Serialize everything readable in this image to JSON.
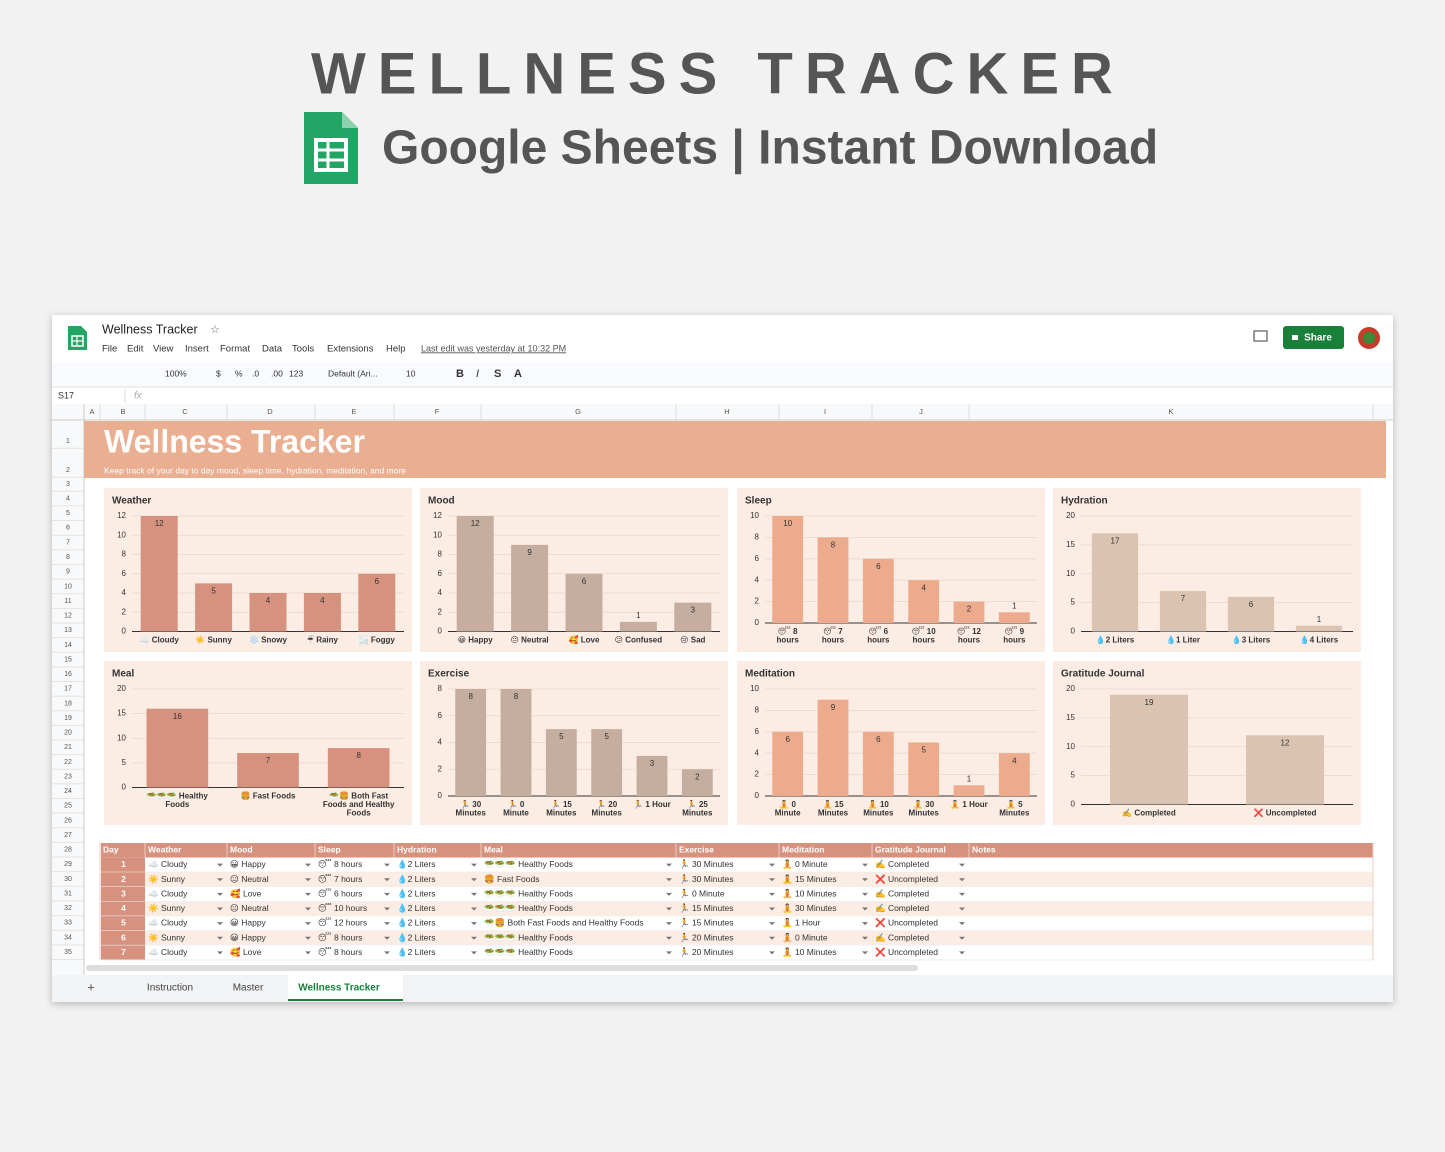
{
  "header": {
    "title": "WELLNESS TRACKER",
    "subtitle": "Google Sheets | Instant Download"
  },
  "app": {
    "doc_title": "Wellness Tracker",
    "menu": [
      "File",
      "Edit",
      "View",
      "Insert",
      "Format",
      "Data",
      "Tools",
      "Extensions",
      "Help"
    ],
    "last_edit": "Last edit was yesterday at 10:32 PM",
    "share": "Share",
    "toolbar": [
      "100%",
      "$",
      "%",
      ".0",
      ".00",
      "123",
      "Default (Ari...",
      "10",
      "B",
      "I",
      "S",
      "A"
    ],
    "name_box": "S17",
    "fx": "fx",
    "columns": [
      "A",
      "B",
      "C",
      "D",
      "E",
      "F",
      "G",
      "H",
      "I",
      "J",
      "K"
    ],
    "rows": [
      1,
      2,
      3,
      4,
      5,
      6,
      7,
      8,
      9,
      10,
      11,
      12,
      13,
      14,
      15,
      16,
      17,
      18,
      19,
      20,
      21,
      22,
      23,
      24,
      25,
      26,
      27,
      28,
      29,
      30,
      31,
      32,
      33,
      34,
      35
    ],
    "tabs": [
      "Instruction",
      "Master",
      "Wellness Tracker"
    ]
  },
  "sheet": {
    "title": "Wellness Tracker",
    "subtitle": "Keep track of your day to day mood, sleep time, hydration, meditation, and more"
  },
  "charts": [
    {
      "type": "bar",
      "title": "Weather",
      "categories": [
        "☁️ Cloudy",
        "☀️ Sunny",
        "❄️ Snowy",
        "☔ Rainy",
        "🌫️ Foggy"
      ],
      "values": [
        12,
        5,
        4,
        4,
        6
      ],
      "color": "#d6927f",
      "ylim": [
        0,
        12
      ],
      "yticks": [
        0,
        2,
        4,
        6,
        8,
        10,
        12
      ],
      "grid": true
    },
    {
      "type": "bar",
      "title": "Mood",
      "categories": [
        "😀 Happy",
        "😐 Neutral",
        "🥰 Love",
        "😕 Confused",
        "😢 Sad"
      ],
      "values": [
        12,
        9,
        6,
        1,
        3
      ],
      "color": "#c5ae9f",
      "ylim": [
        0,
        12
      ],
      "yticks": [
        0,
        2,
        4,
        6,
        8,
        10,
        12
      ],
      "grid": true
    },
    {
      "type": "bar",
      "title": "Sleep",
      "categories": [
        "😴 8 hours",
        "😴 7 hours",
        "😴 6 hours",
        "😴 10 hours",
        "😴 12 hours",
        "😴 9 hours"
      ],
      "values": [
        10,
        8,
        6,
        4,
        2,
        1
      ],
      "color": "#ebab8c",
      "ylim": [
        0,
        10
      ],
      "yticks": [
        0,
        2,
        4,
        6,
        8,
        10
      ],
      "grid": true
    },
    {
      "type": "bar",
      "title": "Hydration",
      "categories": [
        "💧2 Liters",
        "💧1 Liter",
        "💧3 Liters",
        "💧4 Liters"
      ],
      "values": [
        17,
        7,
        6,
        1
      ],
      "color": "#dac3b0",
      "ylim": [
        0,
        20
      ],
      "yticks": [
        0,
        5,
        10,
        15,
        20
      ],
      "grid": true
    },
    {
      "type": "bar",
      "title": "Meal",
      "categories": [
        "🥗🥗🥗 Healthy Foods",
        "🍔 Fast Foods",
        "🥗🍔 Both Fast Foods and Healthy Foods"
      ],
      "values": [
        16,
        7,
        8
      ],
      "color": "#d6927f",
      "ylim": [
        0,
        20
      ],
      "yticks": [
        0,
        5,
        10,
        15,
        20
      ],
      "grid": true
    },
    {
      "type": "bar",
      "title": "Exercise",
      "categories": [
        "🏃 30 Minutes",
        "🏃 0 Minute",
        "🏃 15 Minutes",
        "🏃 20 Minutes",
        "🏃 1 Hour",
        "🏃 25 Minutes"
      ],
      "values": [
        8,
        8,
        5,
        5,
        3,
        2
      ],
      "color": "#c5ae9f",
      "ylim": [
        0,
        8
      ],
      "yticks": [
        0,
        2,
        4,
        6,
        8
      ],
      "grid": true
    },
    {
      "type": "bar",
      "title": "Meditation",
      "categories": [
        "🧘 0 Minute",
        "🧘 15 Minutes",
        "🧘 10 Minutes",
        "🧘 30 Minutes",
        "🧘 1 Hour",
        "🧘 5 Minutes"
      ],
      "values": [
        6,
        9,
        6,
        5,
        1,
        4
      ],
      "color": "#ebab8c",
      "ylim": [
        0,
        10
      ],
      "yticks": [
        0,
        2,
        4,
        6,
        8,
        10
      ],
      "grid": true
    },
    {
      "type": "bar",
      "title": "Gratitude Journal",
      "categories": [
        "✍️ Completed",
        "❌ Uncompleted"
      ],
      "values": [
        19,
        12
      ],
      "color": "#dac3b0",
      "ylim": [
        0,
        20
      ],
      "yticks": [
        0,
        5,
        10,
        15,
        20
      ],
      "grid": true
    }
  ],
  "table": {
    "header": [
      "Day",
      "Weather",
      "Mood",
      "Sleep",
      "Hydration",
      "Meal",
      "Exercise",
      "Meditation",
      "Gratitude Journal",
      "Notes"
    ],
    "rows": [
      [
        1,
        "☁️ Cloudy",
        "😀 Happy",
        "😴 8 hours",
        "💧2 Liters",
        "🥗🥗🥗 Healthy Foods",
        "🏃 30 Minutes",
        "🧘 0 Minute",
        "✍️ Completed"
      ],
      [
        2,
        "☀️ Sunny",
        "😐 Neutral",
        "😴 7 hours",
        "💧2 Liters",
        "🍔 Fast Foods",
        "🏃 30 Minutes",
        "🧘 15 Minutes",
        "❌ Uncompleted"
      ],
      [
        3,
        "☁️ Cloudy",
        "🥰 Love",
        "😴 6 hours",
        "💧2 Liters",
        "🥗🥗🥗 Healthy Foods",
        "🏃 0 Minute",
        "🧘 10 Minutes",
        "✍️ Completed"
      ],
      [
        4,
        "☀️ Sunny",
        "😐 Neutral",
        "😴 10 hours",
        "💧2 Liters",
        "🥗🥗🥗 Healthy Foods",
        "🏃 15 Minutes",
        "🧘 30 Minutes",
        "✍️ Completed"
      ],
      [
        5,
        "☁️ Cloudy",
        "😀 Happy",
        "😴 12 hours",
        "💧2 Liters",
        "🥗🍔 Both Fast Foods and Healthy Foods",
        "🏃 15 Minutes",
        "🧘 1 Hour",
        "❌ Uncompleted"
      ],
      [
        6,
        "☀️ Sunny",
        "😀 Happy",
        "😴 8 hours",
        "💧2 Liters",
        "🥗🥗🥗 Healthy Foods",
        "🏃 20 Minutes",
        "🧘 0 Minute",
        "✍️ Completed"
      ],
      [
        7,
        "☁️ Cloudy",
        "🥰 Love",
        "😴 8 hours",
        "💧2 Liters",
        "🥗🥗🥗 Healthy Foods",
        "🏃 20 Minutes",
        "🧘 10 Minutes",
        "❌ Uncompleted"
      ]
    ]
  }
}
